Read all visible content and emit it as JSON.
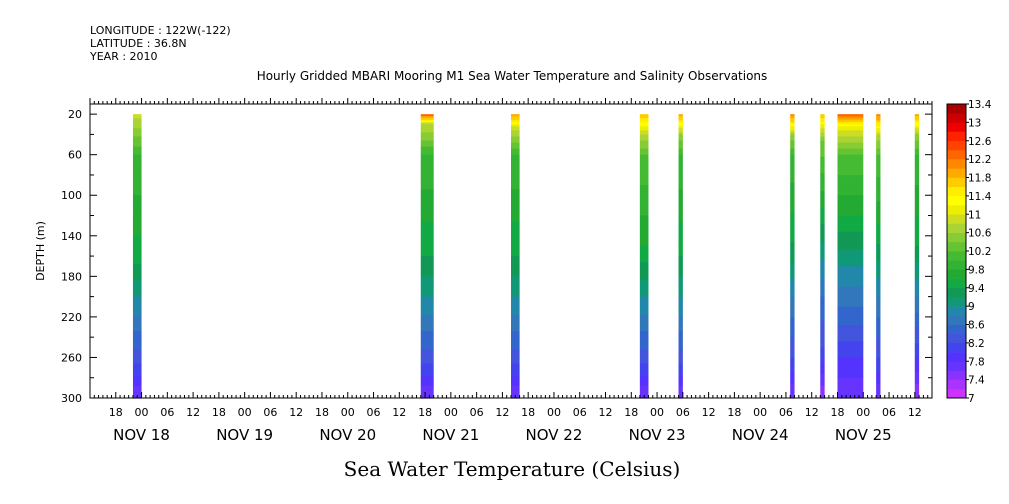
{
  "header": {
    "longitude": "LONGITUDE : 122W(-122)",
    "latitude": "LATITUDE : 36.8N",
    "year": "YEAR : 2010",
    "title": "Hourly Gridded MBARI Mooring M1 Sea Water Temperature and Salinity Observations"
  },
  "chart_data": {
    "type": "heatmap",
    "title": "Hourly Gridded MBARI Mooring M1 Sea Water Temperature and Salinity Observations",
    "xlabel": "",
    "ylabel": "DEPTH (m)",
    "colorbar_label": "Sea Water Temperature (Celsius)",
    "y_axis": {
      "range": [
        300,
        10
      ],
      "inverted": true,
      "tick_labels": [
        "20",
        "60",
        "100",
        "140",
        "180",
        "220",
        "260",
        "300"
      ],
      "tick_values": [
        20,
        60,
        100,
        140,
        180,
        220,
        260,
        300
      ]
    },
    "x_axis": {
      "start": "2010-11-17T12:00",
      "end": "2010-11-25T16:00",
      "hour_labels": [
        {
          "label": "18",
          "t": "2010-11-17T18:00"
        },
        {
          "label": "00",
          "t": "2010-11-18T00:00"
        },
        {
          "label": "06",
          "t": "2010-11-18T06:00"
        },
        {
          "label": "12",
          "t": "2010-11-18T12:00"
        },
        {
          "label": "18",
          "t": "2010-11-18T18:00"
        },
        {
          "label": "00",
          "t": "2010-11-19T00:00"
        },
        {
          "label": "06",
          "t": "2010-11-19T06:00"
        },
        {
          "label": "12",
          "t": "2010-11-19T12:00"
        },
        {
          "label": "18",
          "t": "2010-11-19T18:00"
        },
        {
          "label": "00",
          "t": "2010-11-20T00:00"
        },
        {
          "label": "06",
          "t": "2010-11-20T06:00"
        },
        {
          "label": "12",
          "t": "2010-11-20T12:00"
        },
        {
          "label": "18",
          "t": "2010-11-20T18:00"
        },
        {
          "label": "00",
          "t": "2010-11-21T00:00"
        },
        {
          "label": "06",
          "t": "2010-11-21T06:00"
        },
        {
          "label": "12",
          "t": "2010-11-21T12:00"
        },
        {
          "label": "18",
          "t": "2010-11-21T18:00"
        },
        {
          "label": "00",
          "t": "2010-11-22T00:00"
        },
        {
          "label": "06",
          "t": "2010-11-22T06:00"
        },
        {
          "label": "12",
          "t": "2010-11-22T12:00"
        },
        {
          "label": "18",
          "t": "2010-11-22T18:00"
        },
        {
          "label": "00",
          "t": "2010-11-23T00:00"
        },
        {
          "label": "06",
          "t": "2010-11-23T06:00"
        },
        {
          "label": "12",
          "t": "2010-11-23T12:00"
        },
        {
          "label": "18",
          "t": "2010-11-23T18:00"
        },
        {
          "label": "00",
          "t": "2010-11-24T00:00"
        },
        {
          "label": "06",
          "t": "2010-11-24T06:00"
        },
        {
          "label": "12",
          "t": "2010-11-24T12:00"
        },
        {
          "label": "18",
          "t": "2010-11-24T18:00"
        },
        {
          "label": "00",
          "t": "2010-11-25T00:00"
        },
        {
          "label": "06",
          "t": "2010-11-25T06:00"
        },
        {
          "label": "12",
          "t": "2010-11-25T12:00"
        }
      ],
      "day_labels": [
        {
          "label": "NOV 18",
          "t": "2010-11-18T00:00"
        },
        {
          "label": "NOV 19",
          "t": "2010-11-19T00:00"
        },
        {
          "label": "NOV 20",
          "t": "2010-11-20T00:00"
        },
        {
          "label": "NOV 21",
          "t": "2010-11-21T00:00"
        },
        {
          "label": "NOV 22",
          "t": "2010-11-22T00:00"
        },
        {
          "label": "NOV 23",
          "t": "2010-11-23T00:00"
        },
        {
          "label": "NOV 24",
          "t": "2010-11-24T00:00"
        },
        {
          "label": "NOV 25",
          "t": "2010-11-25T00:00"
        }
      ]
    },
    "colorbar": {
      "levels": [
        7,
        7.2,
        7.4,
        7.6,
        7.8,
        8,
        8.2,
        8.4,
        8.6,
        8.8,
        9,
        9.2,
        9.4,
        9.6,
        9.8,
        10,
        10.2,
        10.4,
        10.6,
        10.8,
        11,
        11.2,
        11.4,
        11.6,
        11.8,
        12,
        12.2,
        12.4,
        12.6,
        12.8,
        13,
        13.2,
        13.4
      ],
      "tick_labels": [
        "7",
        "7.4",
        "7.8",
        "8.2",
        "8.6",
        "9",
        "9.4",
        "9.8",
        "10.2",
        "10.6",
        "11",
        "11.4",
        "11.8",
        "12.2",
        "12.6",
        "13",
        "13.4"
      ],
      "colors": [
        "#cc33ff",
        "#aa33ff",
        "#8833ff",
        "#6633ff",
        "#5533ff",
        "#4444ee",
        "#4455dd",
        "#3366cc",
        "#3377bb",
        "#2288aa",
        "#119977",
        "#119955",
        "#11aa44",
        "#22aa33",
        "#33b333",
        "#44bb33",
        "#66c433",
        "#88cc33",
        "#aad433",
        "#ccdd22",
        "#eeee00",
        "#ffff00",
        "#ffee00",
        "#ffcc00",
        "#ffaa00",
        "#ff8800",
        "#ff6600",
        "#ff4400",
        "#ff2200",
        "#ee0000",
        "#cc0000",
        "#aa0000"
      ]
    },
    "observations": [
      {
        "start": "2010-11-17T22:00",
        "end": "2010-11-18T00:00",
        "profile": [
          [
            20,
            10.9
          ],
          [
            60,
            10.0
          ],
          [
            160,
            9.5
          ],
          [
            200,
            9.0
          ],
          [
            260,
            8.3
          ],
          [
            300,
            7.6
          ]
        ]
      },
      {
        "start": "2010-11-20T17:00",
        "end": "2010-11-20T20:00",
        "profile": [
          [
            20,
            12.4
          ],
          [
            30,
            10.8
          ],
          [
            60,
            10.0
          ],
          [
            160,
            9.4
          ],
          [
            200,
            9.0
          ],
          [
            260,
            8.3
          ],
          [
            300,
            7.6
          ]
        ]
      },
      {
        "start": "2010-11-21T14:00",
        "end": "2010-11-21T16:00",
        "profile": [
          [
            20,
            12.0
          ],
          [
            35,
            10.8
          ],
          [
            60,
            10.0
          ],
          [
            160,
            9.4
          ],
          [
            200,
            9.0
          ],
          [
            260,
            8.3
          ],
          [
            300,
            7.6
          ]
        ]
      },
      {
        "start": "2010-11-22T20:00",
        "end": "2010-11-22T22:00",
        "profile": [
          [
            20,
            11.8
          ],
          [
            40,
            10.8
          ],
          [
            60,
            10.2
          ],
          [
            150,
            9.6
          ],
          [
            200,
            9.0
          ],
          [
            260,
            8.3
          ],
          [
            300,
            7.6
          ]
        ]
      },
      {
        "start": "2010-11-23T05:00",
        "end": "2010-11-23T06:00",
        "profile": [
          [
            20,
            12.0
          ],
          [
            40,
            10.6
          ],
          [
            60,
            10.0
          ],
          [
            160,
            9.4
          ],
          [
            200,
            9.0
          ],
          [
            260,
            8.3
          ],
          [
            300,
            7.6
          ]
        ]
      },
      {
        "start": "2010-11-24T07:00",
        "end": "2010-11-24T08:00",
        "profile": [
          [
            20,
            12.2
          ],
          [
            40,
            10.6
          ],
          [
            60,
            10.0
          ],
          [
            160,
            9.3
          ],
          [
            200,
            8.8
          ],
          [
            260,
            8.2
          ],
          [
            300,
            7.6
          ]
        ]
      },
      {
        "start": "2010-11-24T14:00",
        "end": "2010-11-24T15:00",
        "profile": [
          [
            20,
            11.8
          ],
          [
            45,
            10.4
          ],
          [
            120,
            9.5
          ],
          [
            200,
            8.6
          ],
          [
            250,
            8.2
          ],
          [
            270,
            7.9
          ],
          [
            300,
            7.4
          ]
        ]
      },
      {
        "start": "2010-11-24T18:00",
        "end": "2010-11-25T00:00",
        "profile": [
          [
            20,
            12.4
          ],
          [
            35,
            11.0
          ],
          [
            60,
            10.2
          ],
          [
            120,
            9.6
          ],
          [
            170,
            9.0
          ],
          [
            220,
            8.5
          ],
          [
            260,
            8.0
          ],
          [
            300,
            7.6
          ]
        ]
      },
      {
        "start": "2010-11-25T03:00",
        "end": "2010-11-25T04:00",
        "profile": [
          [
            20,
            12.2
          ],
          [
            40,
            10.8
          ],
          [
            60,
            10.2
          ],
          [
            140,
            9.5
          ],
          [
            200,
            8.8
          ],
          [
            260,
            8.2
          ],
          [
            300,
            7.6
          ]
        ]
      },
      {
        "start": "2010-11-25T12:00",
        "end": "2010-11-25T13:00",
        "profile": [
          [
            20,
            12.0
          ],
          [
            40,
            10.6
          ],
          [
            60,
            10.0
          ],
          [
            150,
            9.4
          ],
          [
            200,
            8.8
          ],
          [
            260,
            8.0
          ],
          [
            300,
            7.4
          ]
        ]
      }
    ]
  }
}
